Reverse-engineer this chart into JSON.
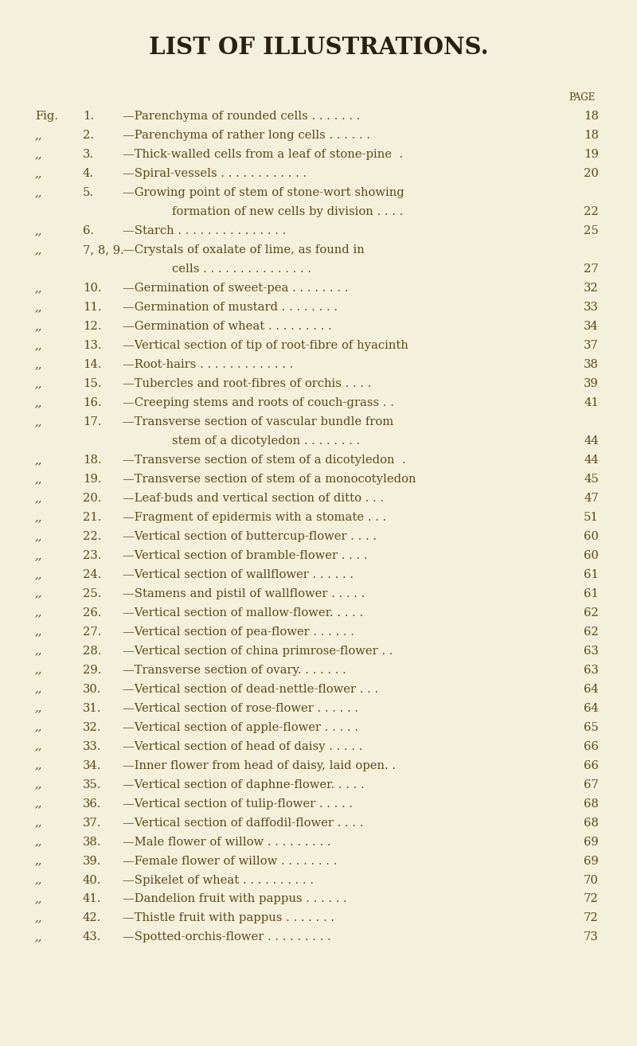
{
  "title": "LIST OF ILLUSTRATIONS.",
  "bg_color": "#f5f0dc",
  "text_color": "#5a4a1a",
  "title_color": "#2a2010",
  "fig_width": 8.0,
  "fig_height": 13.14,
  "entries": [
    {
      "prefix": "Fig.",
      "num": "1",
      "text": "—Parenchyma of rounded cells . . . . . . .",
      "page": "18",
      "indent": false
    },
    {
      "prefix": ",,",
      "num": "2",
      "text": "—Parenchyma of rather long cells . . . . . .",
      "page": "18",
      "indent": false
    },
    {
      "prefix": ",,",
      "num": "3",
      "text": "—Thick-walled cells from a leaf of stone-pine  .",
      "page": "19",
      "indent": false
    },
    {
      "prefix": ",,",
      "num": "4",
      "text": "—Spiral-vessels . . . . . . . . . . . .",
      "page": "20",
      "indent": false
    },
    {
      "prefix": ",,",
      "num": "5",
      "text": "—Growing point of stem of stone-wort showing",
      "page": "",
      "indent": false
    },
    {
      "prefix": "",
      "num": "",
      "text": "formation of new cells by division . . . .",
      "page": "22",
      "indent": true
    },
    {
      "prefix": ",,",
      "num": "6",
      "text": "—Starch . . . . . . . . . . . . . . .",
      "page": "25",
      "indent": false
    },
    {
      "prefix": ",,",
      "num": "7, 8, 9",
      "text": "—Crystals of oxalate of lime, as found in",
      "page": "",
      "indent": false
    },
    {
      "prefix": "",
      "num": "",
      "text": "cells . . . . . . . . . . . . . . .",
      "page": "27",
      "indent": true
    },
    {
      "prefix": ",,",
      "num": "10",
      "text": "—Germination of sweet-pea . . . . . . . .",
      "page": "32",
      "indent": false
    },
    {
      "prefix": ",,",
      "num": "11",
      "text": "—Germination of mustard . . . . . . . .",
      "page": "33",
      "indent": false
    },
    {
      "prefix": ",,",
      "num": "12",
      "text": "—Germination of wheat . . . . . . . . .",
      "page": "34",
      "indent": false
    },
    {
      "prefix": ",,",
      "num": "13",
      "text": "—Vertical section of tip of root-fibre of hyacinth",
      "page": "37",
      "indent": false
    },
    {
      "prefix": ",,",
      "num": "14",
      "text": "—Root-hairs . . . . . . . . . . . . .",
      "page": "38",
      "indent": false
    },
    {
      "prefix": ",,",
      "num": "15",
      "text": "—Tubercles and root-fibres of orchis . . . .",
      "page": "39",
      "indent": false
    },
    {
      "prefix": ",,",
      "num": "16",
      "text": "—Creeping stems and roots of couch-grass . .",
      "page": "41",
      "indent": false
    },
    {
      "prefix": ",,",
      "num": "17",
      "text": "—Transverse section of vascular bundle from",
      "page": "",
      "indent": false
    },
    {
      "prefix": "",
      "num": "",
      "text": "stem of a dicotyledon . . . . . . . .",
      "page": "44",
      "indent": true
    },
    {
      "prefix": ",,",
      "num": "18",
      "text": "—Transverse section of stem of a dicotyledon  .",
      "page": "44",
      "indent": false
    },
    {
      "prefix": ",,",
      "num": "19",
      "text": "—Transverse section of stem of a monocotyledon",
      "page": "45",
      "indent": false
    },
    {
      "prefix": ",,",
      "num": "20",
      "text": "—Leaf-buds and vertical section of ditto . . .",
      "page": "47",
      "indent": false
    },
    {
      "prefix": ",,",
      "num": "21",
      "text": "—Fragment of epidermis with a stomate . . .",
      "page": "51",
      "indent": false
    },
    {
      "prefix": ",,",
      "num": "22",
      "text": "—Vertical section of buttercup-flower . . . .",
      "page": "60",
      "indent": false
    },
    {
      "prefix": ",,",
      "num": "23",
      "text": "—Vertical section of bramble-flower . . . .",
      "page": "60",
      "indent": false
    },
    {
      "prefix": ",,",
      "num": "24",
      "text": "—Vertical section of wallflower . . . . . .",
      "page": "61",
      "indent": false
    },
    {
      "prefix": ",,",
      "num": "25",
      "text": "—Stamens and pistil of wallflower . . . . .",
      "page": "61",
      "indent": false
    },
    {
      "prefix": ",,",
      "num": "26",
      "text": "—Vertical section of mallow-flower. . . . .",
      "page": "62",
      "indent": false
    },
    {
      "prefix": ",,",
      "num": "27",
      "text": "—Vertical section of pea-flower . . . . . .",
      "page": "62",
      "indent": false
    },
    {
      "prefix": ",,",
      "num": "28",
      "text": "—Vertical section of china primrose-flower . .",
      "page": "63",
      "indent": false
    },
    {
      "prefix": ",,",
      "num": "29",
      "text": "—Transverse section of ovary. . . . . . .",
      "page": "63",
      "indent": false
    },
    {
      "prefix": ",,",
      "num": "30",
      "text": "—Vertical section of dead-nettle-flower . . .",
      "page": "64",
      "indent": false
    },
    {
      "prefix": ",,",
      "num": "31",
      "text": "—Vertical section of rose-flower . . . . . .",
      "page": "64",
      "indent": false
    },
    {
      "prefix": ",,",
      "num": "32",
      "text": "—Vertical section of apple-flower . . . . .",
      "page": "65",
      "indent": false
    },
    {
      "prefix": ",,",
      "num": "33",
      "text": "—Vertical section of head of daisy . . . . .",
      "page": "66",
      "indent": false
    },
    {
      "prefix": ",,",
      "num": "34",
      "text": "—Inner flower from head of daisy, laid open. .",
      "page": "66",
      "indent": false
    },
    {
      "prefix": ",,",
      "num": "35",
      "text": "—Vertical section of daphne-flower. . . . .",
      "page": "67",
      "indent": false
    },
    {
      "prefix": ",,",
      "num": "36",
      "text": "—Vertical section of tulip-flower . . . . .",
      "page": "68",
      "indent": false
    },
    {
      "prefix": ",,",
      "num": "37",
      "text": "—Vertical section of daffodil-flower . . . .",
      "page": "68",
      "indent": false
    },
    {
      "prefix": ",,",
      "num": "38",
      "text": "—Male flower of willow . . . . . . . . .",
      "page": "69",
      "indent": false
    },
    {
      "prefix": ",,",
      "num": "39",
      "text": "—Female flower of willow . . . . . . . .",
      "page": "69",
      "indent": false
    },
    {
      "prefix": ",,",
      "num": "40",
      "text": "—Spikelet of wheat . . . . . . . . . .",
      "page": "70",
      "indent": false
    },
    {
      "prefix": ",,",
      "num": "41",
      "text": "—Dandelion fruit with pappus . . . . . .",
      "page": "72",
      "indent": false
    },
    {
      "prefix": ",,",
      "num": "42",
      "text": "—Thistle fruit with pappus . . . . . . .",
      "page": "72",
      "indent": false
    },
    {
      "prefix": ",,",
      "num": "43",
      "text": "—Spotted-orchis-flower . . . . . . . . .",
      "page": "73",
      "indent": false
    }
  ]
}
